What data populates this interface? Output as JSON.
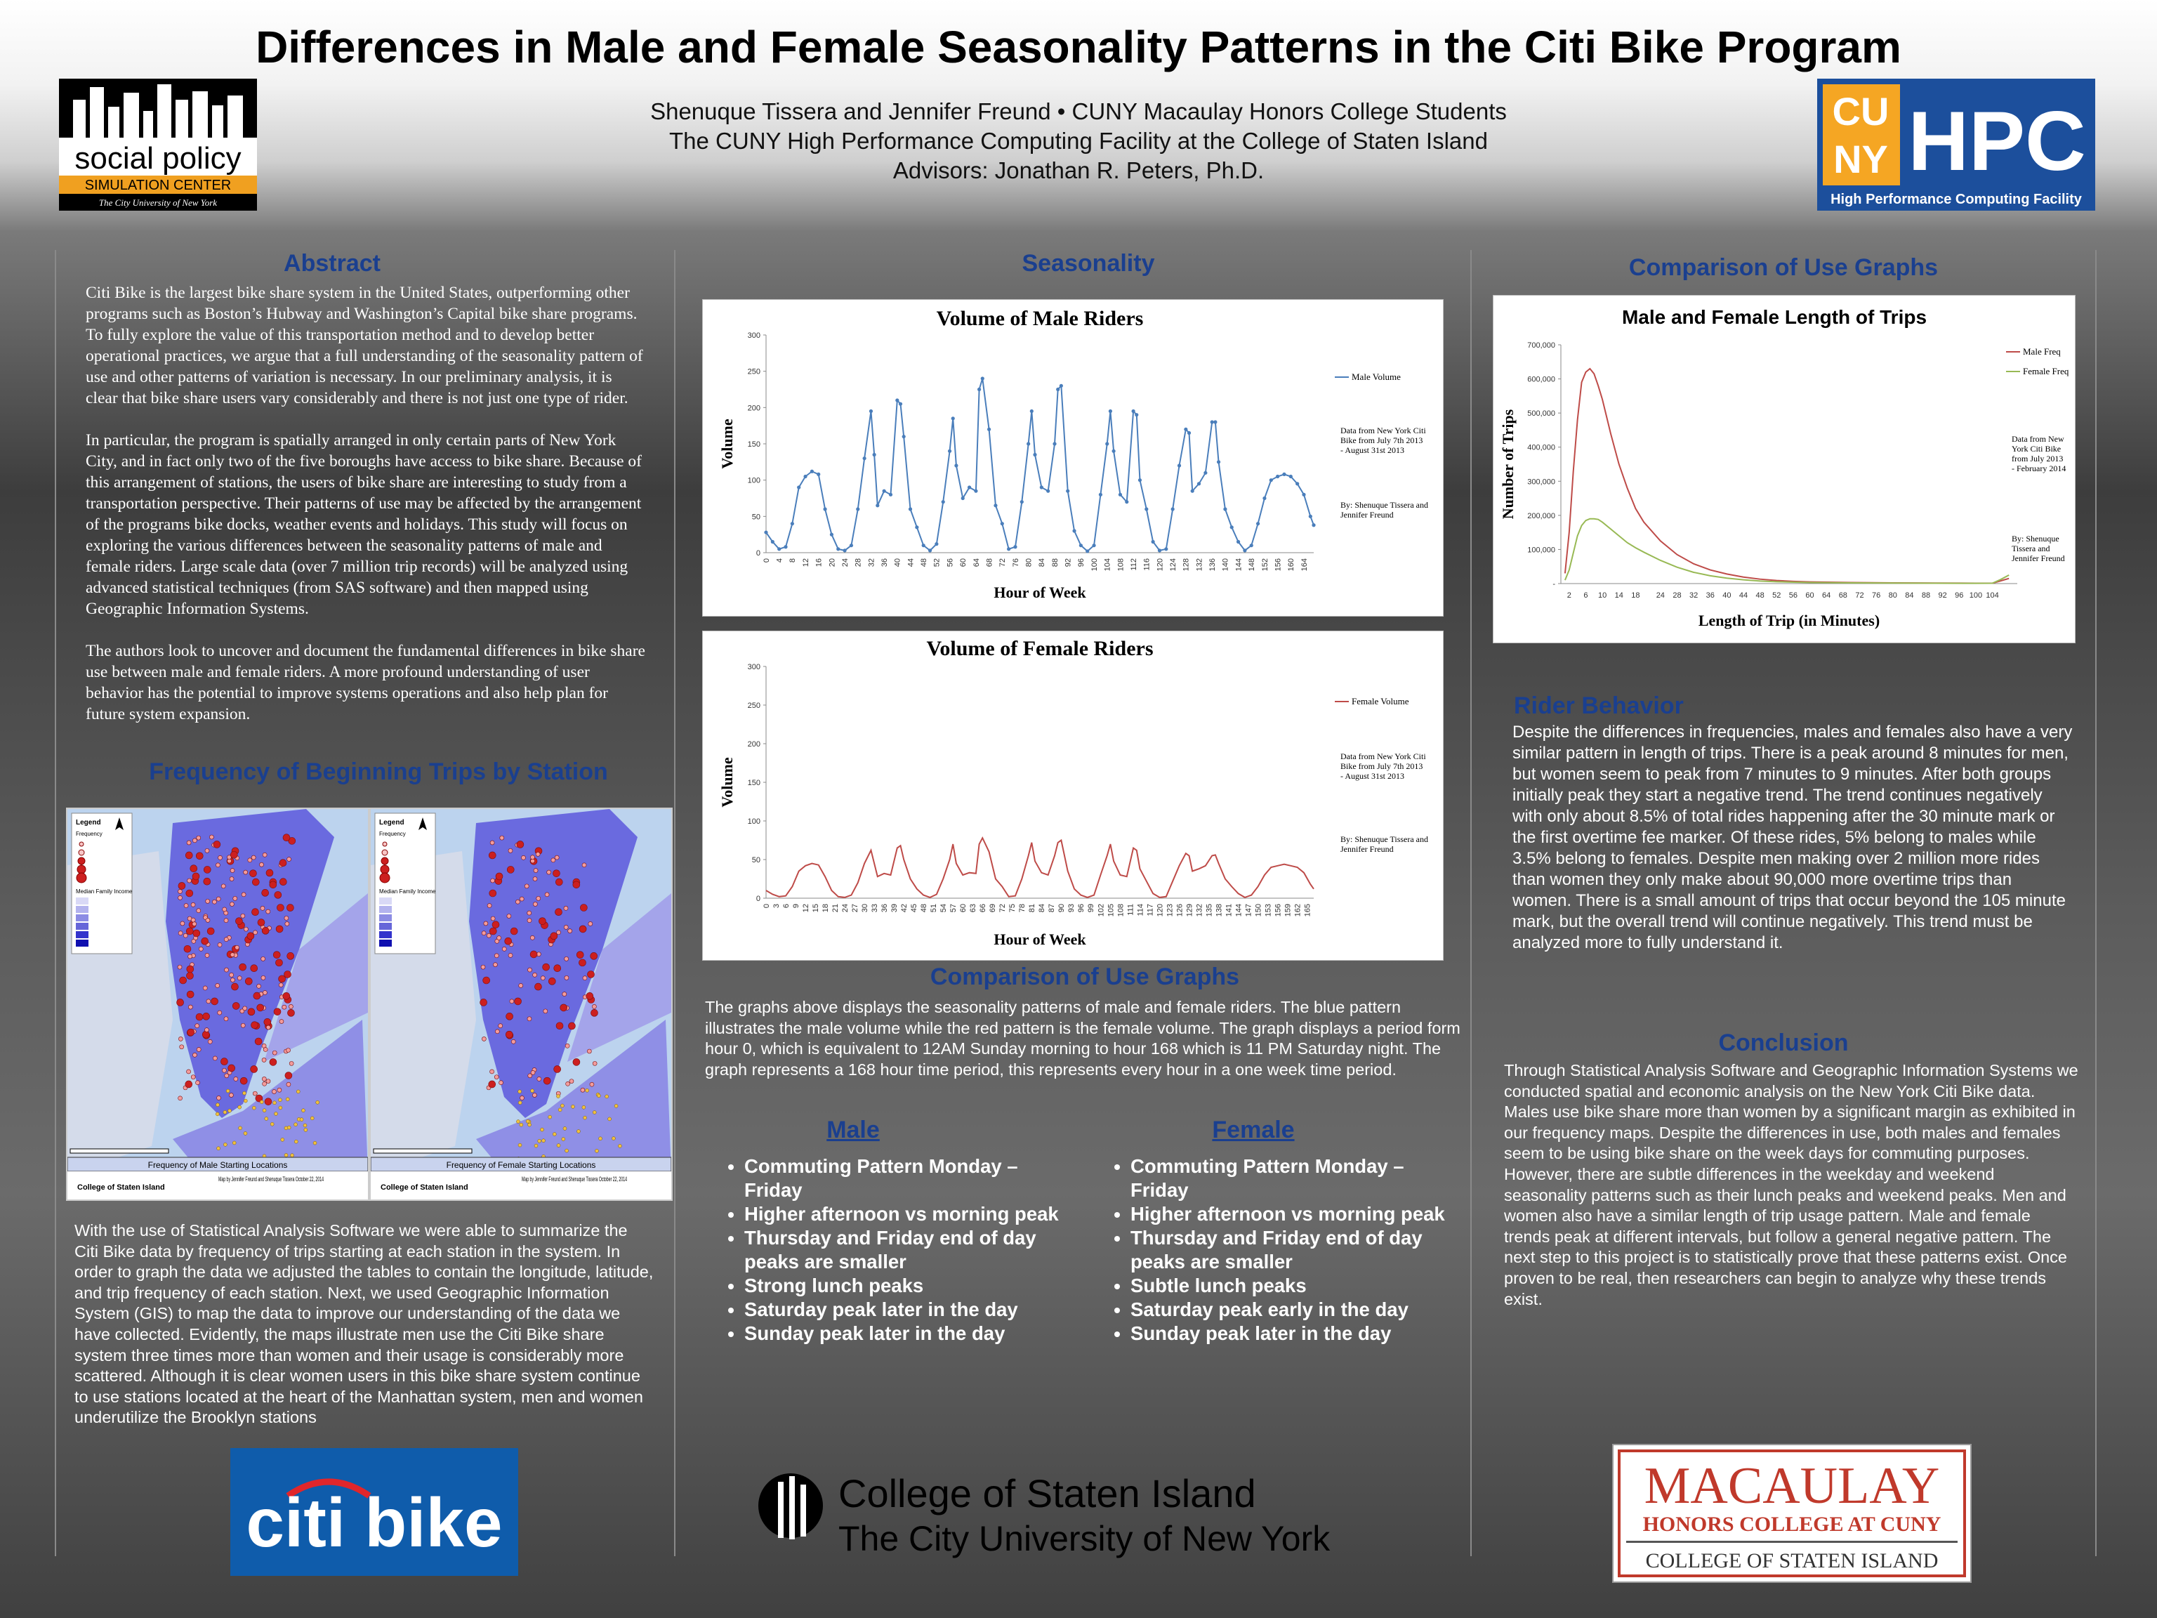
{
  "title": "Differences in Male and Female Seasonality Patterns in the Citi Bike Program",
  "authors": {
    "line1": "Shenuque Tissera and Jennifer Freund •  CUNY Macaulay Honors College Students",
    "line2": "The CUNY High Performance Computing Facility at the College of Staten Island",
    "line3": "Advisors: Jonathan R. Peters, Ph.D."
  },
  "logos": {
    "spc_line1": "social policy",
    "spc_line2": "SIMULATION CENTER",
    "spc_line3": "The City University of New York",
    "hpc_main": "HPC",
    "hpc_cuny_top": "CU",
    "hpc_cuny_bottom": "NY",
    "hpc_sub": "High Performance Computing Facility",
    "citi": "citi bike",
    "csi_line1": "College of Staten Island",
    "csi_line2": "The City University of New York",
    "mac_line1": "MACAULAY",
    "mac_line2": "HONORS COLLEGE AT CUNY",
    "mac_line3": "COLLEGE OF STATEN ISLAND"
  },
  "abstract": {
    "heading": "Abstract",
    "p1": "Citi Bike is the largest bike share system in the United States, outperforming other programs such as Boston’s Hubway and Washington’s Capital bike share programs. To fully explore the value of this transportation method and to develop better operational practices, we argue that a full understanding of the seasonality pattern of use and other patterns of variation is necessary.  In our preliminary analysis, it is clear that bike share users vary considerably and there is not just one type of rider.",
    "p2": "In particular, the program is spatially arranged in only certain parts of New York City, and in fact only two of the five boroughs have access to bike share. Because of this arrangement of stations, the users of bike share are interesting to study from a transportation perspective. Their patterns of use may be affected by the arrangement of the programs bike docks, weather events and holidays. This study will focus on exploring the various differences between the seasonality patterns of male and female riders.  Large scale data (over 7 million trip records) will be analyzed using advanced statistical techniques (from SAS software) and then mapped using Geographic Information Systems.",
    "p3": "The authors look to uncover and document the fundamental differences in bike share use between male and female riders.   A more profound understanding of user behavior has the potential to improve systems operations and also help plan for future system expansion."
  },
  "frequency": {
    "heading": "Frequency of Beginning Trips by Station",
    "map_male_caption": "Frequency of Male Starting Locations",
    "map_female_caption": "Frequency of Female Starting Locations",
    "legend_title": "Legend",
    "legend_freq": "Frequency",
    "legend_income": "Median Family Income",
    "credit_male": "Map by Jennifer Freund and Shenuque Tissera October 22, 2014",
    "credit_female": "Map by Jennifer Freund and Shenuque Tissera October 22, 2014",
    "csi_small": "College of Staten Island",
    "text": "With the use of Statistical Analysis Software we were able to summarize the Citi Bike data by frequency of trips starting at each station in the system. In order to graph the data we adjusted the tables to contain the longitude, latitude, and trip frequency of each station. Next, we used Geographic Information System (GIS) to map the data to improve our understanding of the data we have collected. Evidently, the maps illustrate men use the Citi Bike share system three times more than women and their usage is considerably more scattered. Although it is clear women users in this bike share system continue to use stations located at the heart of the Manhattan system, men and women underutilize the Brooklyn stations"
  },
  "seasonality": {
    "heading": "Seasonality",
    "male_chart_title": "Volume of Male Riders",
    "female_chart_title": "Volume of Female Riders",
    "male_legend": "Male Volume",
    "female_legend": "Female Volume",
    "note_data": "Data from New York Citi Bike from July 7th 2013 - August 31st 2013",
    "note_by": "By: Shenuque Tissera and Jennifer Freund"
  },
  "comparison_mid": {
    "heading": "Comparison of Use Graphs",
    "text": "The graphs above displays the seasonality patterns of male and female riders. The blue pattern illustrates the male volume while the red pattern is the female volume. The graph displays a period form hour 0, which is equivalent to 12AM Sunday morning to hour 168 which is 11 PM Saturday night. The graph represents a 168 hour time period, this represents every hour in a one week time period.",
    "male_head": "Male",
    "female_head": "Female",
    "male_bullets": [
      "Commuting Pattern Monday – Friday",
      "Higher afternoon vs morning peak",
      "Thursday and Friday end of day peaks are smaller",
      "Strong lunch peaks",
      "Saturday peak later in the day",
      "Sunday peak later in the day"
    ],
    "female_bullets": [
      "Commuting Pattern Monday – Friday",
      "Higher afternoon vs morning peak",
      "Thursday and Friday end of day peaks are smaller",
      "Subtle lunch peaks",
      "Saturday peak early in the day",
      "Sunday peak later in the day"
    ]
  },
  "comparison_right": {
    "heading": "Comparison of Use Graphs",
    "chart_title": "Male and Female Length of Trips",
    "legend_male": "Male Freq",
    "legend_female": "Female Freq",
    "note_data": "Data from New York Citi Bike from  July 2013 - February 2014",
    "note_by": "By: Shenuque Tissera and Jennifer Freund"
  },
  "rider_behavior": {
    "heading": "Rider Behavior",
    "text": "Despite the differences in frequencies, males and females also have a very similar pattern in length of trips. There is a peak around 8 minutes for men, but women seem to peak from 7 minutes to 9 minutes. After both groups initially peak they start a negative trend. The trend continues negatively with only about 8.5% of total rides happening after the 30 minute mark or the first overtime fee marker.  Of these rides, 5% belong to males while 3.5% belong to females. Despite men making over 2 million more rides than women they only make about 90,000 more overtime trips than women. There is a small amount of trips that occur beyond the 105 minute mark, but the overall trend will continue negatively. This trend must be analyzed more to fully understand it."
  },
  "conclusion": {
    "heading": "Conclusion",
    "text": "Through Statistical Analysis Software and Geographic Information Systems we conducted spatial and economic analysis on the New York Citi Bike data. Males use bike share more than women by a significant margin as exhibited in our frequency maps. Despite the differences in use, both males and females seem to be using bike share on the week days for commuting purposes. However, there are subtle differences in the weekday and weekend seasonality patterns such as their lunch peaks and weekend peaks. Men and women also have a similar length of trip usage pattern. Male and female trends peak at different intervals, but follow a general negative pattern. The next step to this project is to statistically prove that these patterns exist. Once proven to be real, then researchers can begin to analyze why these trends exist."
  },
  "chart_data": [
    {
      "type": "line",
      "title": "Volume of Male Riders",
      "xlabel": "Hour of Week",
      "ylabel": "Volume",
      "ylim": [
        0,
        300
      ],
      "yticks": [
        0,
        50,
        100,
        150,
        200,
        250,
        300
      ],
      "xticks": [
        0,
        4,
        8,
        12,
        16,
        20,
        24,
        28,
        32,
        36,
        40,
        44,
        48,
        52,
        56,
        60,
        64,
        68,
        72,
        76,
        80,
        84,
        88,
        92,
        96,
        100,
        104,
        108,
        112,
        116,
        120,
        124,
        128,
        132,
        136,
        140,
        144,
        148,
        152,
        156,
        160,
        164
      ],
      "series": [
        {
          "name": "Male Volume",
          "color": "#4a7ebb",
          "x": [
            0,
            2,
            4,
            6,
            8,
            10,
            12,
            14,
            16,
            18,
            20,
            22,
            24,
            26,
            28,
            30,
            32,
            33,
            34,
            36,
            38,
            40,
            41,
            42,
            44,
            46,
            48,
            50,
            52,
            54,
            56,
            57,
            58,
            60,
            62,
            64,
            65,
            66,
            68,
            70,
            72,
            74,
            76,
            78,
            80,
            81,
            82,
            84,
            86,
            88,
            89,
            90,
            92,
            94,
            96,
            98,
            100,
            102,
            104,
            105,
            106,
            108,
            110,
            112,
            113,
            114,
            116,
            118,
            120,
            122,
            124,
            126,
            128,
            129,
            130,
            132,
            134,
            136,
            137,
            138,
            140,
            142,
            144,
            146,
            148,
            150,
            152,
            154,
            156,
            158,
            160,
            162,
            164,
            166,
            167
          ],
          "values": [
            28,
            15,
            5,
            8,
            40,
            90,
            105,
            112,
            108,
            60,
            25,
            5,
            3,
            10,
            60,
            130,
            195,
            135,
            65,
            85,
            80,
            210,
            205,
            160,
            60,
            35,
            10,
            3,
            12,
            70,
            140,
            185,
            120,
            75,
            90,
            85,
            225,
            240,
            170,
            65,
            40,
            5,
            8,
            70,
            150,
            195,
            135,
            90,
            85,
            150,
            225,
            230,
            85,
            30,
            10,
            2,
            10,
            80,
            150,
            195,
            140,
            80,
            70,
            195,
            190,
            100,
            60,
            15,
            3,
            5,
            60,
            120,
            170,
            165,
            85,
            95,
            110,
            180,
            180,
            125,
            60,
            35,
            15,
            3,
            10,
            40,
            75,
            100,
            105,
            108,
            105,
            95,
            80,
            50,
            38
          ]
        }
      ]
    },
    {
      "type": "line",
      "title": "Volume of Female Riders",
      "xlabel": "Hour of Week",
      "ylabel": "Volume",
      "ylim": [
        0,
        300
      ],
      "yticks": [
        0,
        50,
        100,
        150,
        200,
        250,
        300
      ],
      "xticks": [
        0,
        3,
        6,
        9,
        12,
        15,
        18,
        21,
        24,
        27,
        30,
        33,
        36,
        39,
        42,
        45,
        48,
        51,
        54,
        57,
        60,
        63,
        66,
        69,
        72,
        75,
        78,
        81,
        84,
        87,
        90,
        93,
        96,
        99,
        102,
        105,
        108,
        111,
        114,
        117,
        120,
        123,
        126,
        129,
        132,
        135,
        138,
        141,
        144,
        147,
        150,
        153,
        156,
        159,
        162,
        165
      ],
      "series": [
        {
          "name": "Female Volume",
          "color": "#be4b48",
          "x": [
            0,
            2,
            4,
            6,
            8,
            10,
            12,
            14,
            16,
            18,
            20,
            22,
            24,
            26,
            28,
            30,
            32,
            33,
            34,
            36,
            38,
            40,
            41,
            42,
            44,
            46,
            48,
            50,
            52,
            54,
            56,
            57,
            58,
            60,
            62,
            64,
            65,
            66,
            68,
            70,
            72,
            74,
            76,
            78,
            80,
            81,
            82,
            84,
            86,
            88,
            89,
            90,
            92,
            94,
            96,
            98,
            100,
            102,
            104,
            105,
            106,
            108,
            110,
            112,
            113,
            114,
            116,
            118,
            120,
            122,
            124,
            126,
            128,
            129,
            130,
            132,
            134,
            136,
            137,
            138,
            140,
            142,
            144,
            146,
            148,
            150,
            152,
            154,
            156,
            158,
            160,
            162,
            164,
            166,
            167
          ],
          "values": [
            10,
            5,
            2,
            3,
            15,
            35,
            42,
            45,
            43,
            28,
            10,
            2,
            1,
            4,
            20,
            45,
            62,
            45,
            28,
            32,
            30,
            65,
            68,
            50,
            25,
            12,
            4,
            1,
            5,
            25,
            50,
            70,
            45,
            30,
            33,
            32,
            70,
            78,
            60,
            25,
            15,
            2,
            3,
            25,
            55,
            72,
            48,
            33,
            30,
            55,
            72,
            75,
            35,
            12,
            4,
            1,
            4,
            30,
            55,
            70,
            48,
            30,
            28,
            65,
            62,
            38,
            22,
            6,
            1,
            2,
            22,
            42,
            58,
            55,
            35,
            38,
            42,
            55,
            56,
            45,
            25,
            15,
            6,
            1,
            4,
            15,
            30,
            40,
            42,
            44,
            42,
            40,
            33,
            18,
            12
          ]
        }
      ]
    },
    {
      "type": "line",
      "title": "Male and Female Length of Trips",
      "xlabel": "Length of Trip (in Minutes)",
      "ylabel": "Number of Trips",
      "ylim": [
        0,
        700000
      ],
      "yticks": [
        0,
        100000,
        200000,
        300000,
        400000,
        500000,
        600000,
        700000
      ],
      "xticks": [
        2,
        6,
        10,
        14,
        18,
        24,
        28,
        32,
        36,
        40,
        44,
        48,
        52,
        56,
        60,
        64,
        68,
        72,
        76,
        80,
        84,
        88,
        92,
        96,
        100,
        104
      ],
      "series": [
        {
          "name": "Male Freq",
          "color": "#be4b48",
          "x": [
            1,
            2,
            3,
            4,
            5,
            6,
            7,
            8,
            9,
            10,
            12,
            14,
            16,
            18,
            20,
            24,
            28,
            32,
            36,
            40,
            44,
            48,
            52,
            56,
            60,
            70,
            80,
            90,
            100,
            104,
            106,
            108
          ],
          "values": [
            30000,
            150000,
            330000,
            480000,
            590000,
            620000,
            630000,
            615000,
            580000,
            540000,
            440000,
            350000,
            280000,
            220000,
            180000,
            125000,
            85000,
            58000,
            40000,
            28000,
            19000,
            13000,
            9000,
            6500,
            5000,
            3000,
            2000,
            1500,
            1000,
            1000,
            8000,
            15000
          ]
        },
        {
          "name": "Female Freq",
          "color": "#98b954",
          "x": [
            1,
            2,
            3,
            4,
            5,
            6,
            7,
            8,
            9,
            10,
            12,
            14,
            16,
            18,
            20,
            24,
            28,
            32,
            36,
            40,
            44,
            48,
            52,
            56,
            60,
            70,
            80,
            90,
            100,
            104,
            106,
            108
          ],
          "values": [
            10000,
            40000,
            90000,
            140000,
            170000,
            185000,
            190000,
            190000,
            188000,
            180000,
            160000,
            140000,
            120000,
            105000,
            92000,
            68000,
            48000,
            33000,
            23000,
            16000,
            11000,
            7500,
            5500,
            4000,
            3000,
            2000,
            1500,
            1000,
            800,
            1000,
            12000,
            25000
          ]
        }
      ]
    }
  ]
}
